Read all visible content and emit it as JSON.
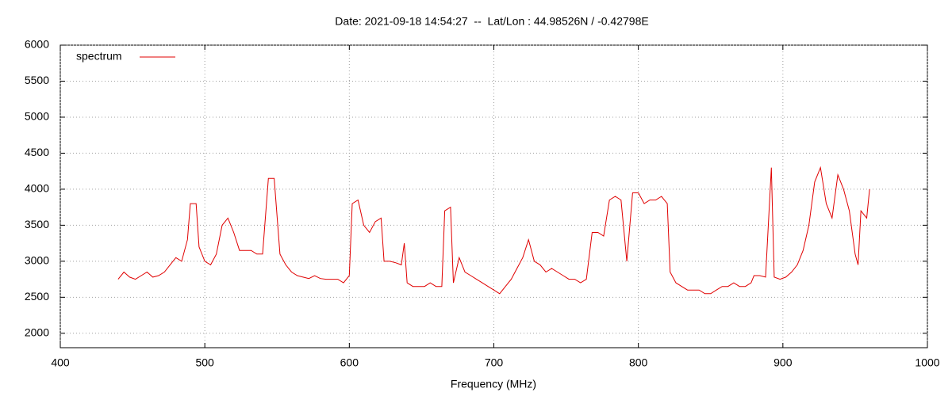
{
  "chart_data": {
    "type": "line",
    "title": "Date: 2021-09-18 14:54:27  --  Lat/Lon : 44.98526N / -0.42798E",
    "x_label": "Frequency (MHz)",
    "xlim": [
      400,
      1000
    ],
    "xticks": [
      400,
      500,
      600,
      700,
      800,
      900,
      1000
    ],
    "ylim": [
      1800,
      6000
    ],
    "yticks": [
      2000,
      2500,
      3000,
      3500,
      4000,
      4500,
      5000,
      5500,
      6000
    ],
    "grid": true,
    "legend": "top-left",
    "series": [
      {
        "name": "spectrum",
        "color": "#e00000",
        "x": [
          440,
          444,
          448,
          452,
          456,
          460,
          464,
          468,
          472,
          476,
          480,
          484,
          488,
          490,
          494,
          496,
          500,
          504,
          508,
          512,
          516,
          520,
          524,
          528,
          532,
          536,
          540,
          544,
          548,
          552,
          556,
          560,
          564,
          568,
          572,
          576,
          580,
          584,
          588,
          592,
          596,
          600,
          602,
          606,
          610,
          614,
          618,
          622,
          624,
          628,
          632,
          636,
          638,
          640,
          644,
          648,
          652,
          656,
          660,
          664,
          666,
          670,
          672,
          676,
          680,
          684,
          688,
          692,
          696,
          700,
          704,
          708,
          712,
          716,
          720,
          724,
          728,
          732,
          736,
          740,
          744,
          748,
          752,
          756,
          760,
          764,
          768,
          772,
          776,
          780,
          784,
          788,
          792,
          796,
          800,
          804,
          808,
          812,
          816,
          820,
          822,
          826,
          830,
          834,
          838,
          842,
          846,
          850,
          854,
          858,
          862,
          866,
          870,
          874,
          878,
          880,
          884,
          888,
          892,
          894,
          898,
          902,
          906,
          910,
          914,
          918,
          922,
          926,
          930,
          934,
          938,
          942,
          946,
          950,
          952,
          954,
          958,
          960
        ],
        "values": [
          2750,
          2850,
          2780,
          2750,
          2800,
          2850,
          2780,
          2800,
          2850,
          2950,
          3050,
          3000,
          3300,
          3800,
          3800,
          3200,
          3000,
          2950,
          3100,
          3500,
          3600,
          3400,
          3150,
          3150,
          3150,
          3100,
          3100,
          4150,
          4150,
          3100,
          2950,
          2850,
          2800,
          2780,
          2760,
          2800,
          2760,
          2750,
          2750,
          2750,
          2700,
          2800,
          3800,
          3850,
          3500,
          3400,
          3550,
          3600,
          3000,
          3000,
          2980,
          2950,
          3250,
          2700,
          2650,
          2650,
          2650,
          2700,
          2650,
          2650,
          3700,
          3750,
          2700,
          3050,
          2850,
          2800,
          2750,
          2700,
          2650,
          2600,
          2550,
          2650,
          2750,
          2900,
          3050,
          3300,
          3000,
          2950,
          2850,
          2900,
          2850,
          2800,
          2750,
          2750,
          2700,
          2750,
          3400,
          3400,
          3350,
          3850,
          3900,
          3850,
          3000,
          3950,
          3950,
          3800,
          3850,
          3850,
          3900,
          3800,
          2850,
          2700,
          2650,
          2600,
          2600,
          2600,
          2550,
          2550,
          2600,
          2650,
          2650,
          2700,
          2650,
          2650,
          2700,
          2800,
          2800,
          2780,
          4300,
          2780,
          2750,
          2780,
          2850,
          2950,
          3150,
          3500,
          4100,
          4300,
          3800,
          3600,
          4200,
          4000,
          3700,
          3100,
          2950,
          3700,
          3600,
          4000
        ]
      }
    ]
  }
}
